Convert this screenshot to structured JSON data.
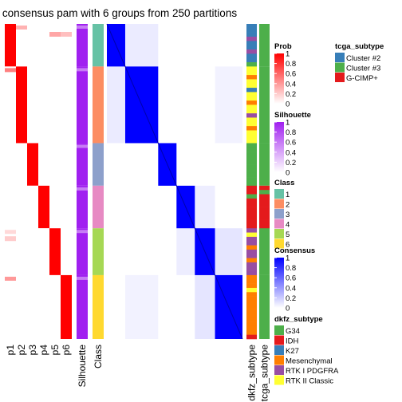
{
  "title": "consensus pam with 6 groups from 250 partitions",
  "chart_data": {
    "type": "heatmap",
    "title": "consensus pam with 6 groups from 250 partitions",
    "n_groups": 6,
    "n_partitions": 250,
    "class_sizes": [
      10,
      18,
      10,
      10,
      11,
      15
    ],
    "prob_columns": [
      "p1",
      "p2",
      "p3",
      "p4",
      "p5",
      "p6"
    ],
    "annotation_columns": [
      "Silhouette",
      "Class",
      "dkfz_subtype",
      "tcga_subtype"
    ],
    "legends": {
      "prob": {
        "title": "Prob",
        "ticks": [
          "1",
          "0.8",
          "0.6",
          "0.4",
          "0.2",
          "0"
        ],
        "colors": [
          "#ff0000",
          "#ffffff"
        ]
      },
      "silhouette": {
        "title": "Silhouette",
        "ticks": [
          "1",
          "0.8",
          "0.6",
          "0.4",
          "0.2",
          "0"
        ],
        "colors": [
          "#a020f0",
          "#ffffff"
        ]
      },
      "class": {
        "title": "Class",
        "items": [
          {
            "label": "1",
            "color": "#66c2a5"
          },
          {
            "label": "2",
            "color": "#fc8d62"
          },
          {
            "label": "3",
            "color": "#8da0cb"
          },
          {
            "label": "4",
            "color": "#e78ac3"
          },
          {
            "label": "5",
            "color": "#a6d854"
          },
          {
            "label": "6",
            "color": "#ffd92f"
          }
        ]
      },
      "consensus": {
        "title": "Consensus",
        "ticks": [
          "1",
          "0.8",
          "0.6",
          "0.4",
          "0.2",
          "0"
        ],
        "colors": [
          "#0000ff",
          "#ffffff"
        ]
      },
      "dkfz_subtype": {
        "title": "dkfz_subtype",
        "items": [
          {
            "label": "G34",
            "color": "#4daf4a"
          },
          {
            "label": "IDH",
            "color": "#e41a1c"
          },
          {
            "label": "K27",
            "color": "#377eb8"
          },
          {
            "label": "Mesenchymal",
            "color": "#ff7f00"
          },
          {
            "label": "RTK I PDGFRA",
            "color": "#984ea3"
          },
          {
            "label": "RTK II Classic",
            "color": "#ffff33"
          }
        ]
      },
      "tcga_subtype": {
        "title": "tcga_subtype",
        "items": [
          {
            "label": "Cluster #2",
            "color": "#377eb8"
          },
          {
            "label": "Cluster #3",
            "color": "#4daf4a"
          },
          {
            "label": "G-CIMP+",
            "color": "#e41a1c"
          }
        ]
      }
    }
  }
}
